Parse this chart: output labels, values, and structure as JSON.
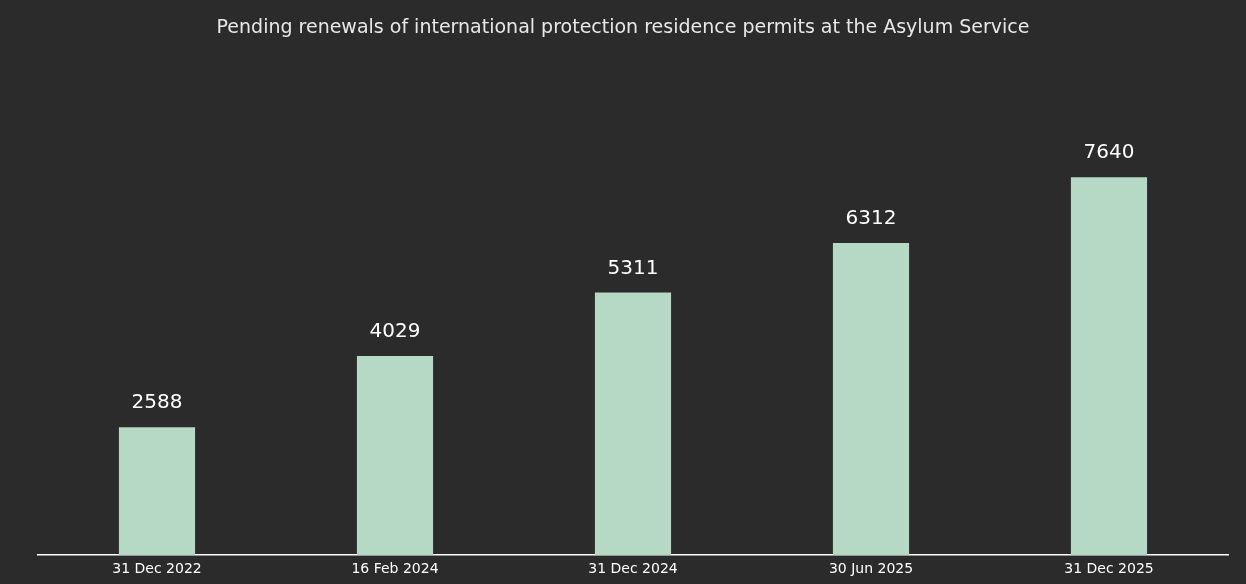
{
  "chart_data": {
    "type": "bar",
    "title": "Pending renewals of international protection residence permits at the Asylum Service",
    "categories": [
      "31 Dec 2022",
      "16 Feb 2024",
      "31 Dec 2024",
      "30 Jun 2025",
      "31 Dec 2025"
    ],
    "values": [
      2588,
      4029,
      5311,
      6312,
      7640
    ],
    "color": "#b5d9c5",
    "data_labels": true,
    "grid": false,
    "legend": false
  }
}
